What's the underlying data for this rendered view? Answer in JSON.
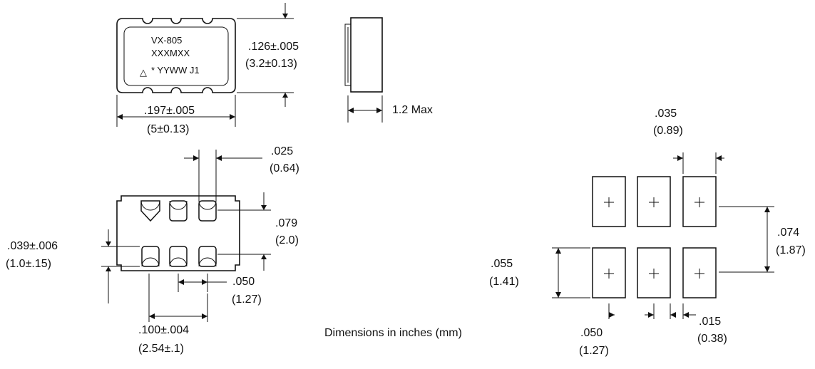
{
  "marking": {
    "line1": "VX-805",
    "line2": "XXXMXX",
    "line3": "* YYWW J1",
    "pin1_symbol": "△"
  },
  "top_view": {
    "height_in": ".126±.005",
    "height_mm": "(3.2±0.13)",
    "width_in": ".197±.005",
    "width_mm": "(5±0.13)"
  },
  "side_view": {
    "max_height": "1.2 Max"
  },
  "bottom_view": {
    "pad_width_in": ".025",
    "pad_width_mm": "(0.64)",
    "pad_row_span_in": ".079",
    "pad_row_span_mm": "(2.0)",
    "pad_length_in": ".039±.006",
    "pad_length_mm": "(1.0±.15)",
    "pad_pitch_in": ".050",
    "pad_pitch_mm": "(1.27)",
    "outer_pitch_in": ".100±.004",
    "outer_pitch_mm": "(2.54±.1)"
  },
  "land_pattern": {
    "land_width_in": ".035",
    "land_width_mm": "(0.89)",
    "row_pitch_in": ".074",
    "row_pitch_mm": "(1.87)",
    "land_length_in": ".055",
    "land_length_mm": "(1.41)",
    "col_pitch_in": ".050",
    "col_pitch_mm": "(1.27)",
    "gap_in": ".015",
    "gap_mm": "(0.38)"
  },
  "note": "Dimensions in inches (mm)"
}
